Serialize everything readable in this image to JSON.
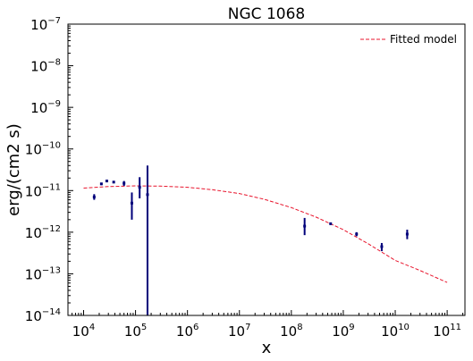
{
  "chart_data": {
    "type": "scatter",
    "title": "NGC 1068",
    "xlabel": "x",
    "ylabel": "erg/(cm2 s)",
    "xscale": "log",
    "yscale": "log",
    "xlim": [
      5000,
      220000000000
    ],
    "ylim": [
      1e-14,
      1e-07
    ],
    "x_ticks": [
      {
        "value": 10000,
        "base": "10",
        "exp": "4"
      },
      {
        "value": 100000,
        "base": "10",
        "exp": "5"
      },
      {
        "value": 1000000,
        "base": "10",
        "exp": "6"
      },
      {
        "value": 10000000,
        "base": "10",
        "exp": "7"
      },
      {
        "value": 100000000,
        "base": "10",
        "exp": "8"
      },
      {
        "value": 1000000000,
        "base": "10",
        "exp": "9"
      },
      {
        "value": 10000000000,
        "base": "10",
        "exp": "10"
      },
      {
        "value": 100000000000,
        "base": "10",
        "exp": "11"
      }
    ],
    "y_ticks": [
      {
        "value": 1e-14,
        "base": "10",
        "exp": "−14"
      },
      {
        "value": 1e-13,
        "base": "10",
        "exp": "−13"
      },
      {
        "value": 1e-12,
        "base": "10",
        "exp": "−12"
      },
      {
        "value": 1e-11,
        "base": "10",
        "exp": "−11"
      },
      {
        "value": 1e-10,
        "base": "10",
        "exp": "−10"
      },
      {
        "value": 1e-09,
        "base": "10",
        "exp": "−9"
      },
      {
        "value": 1e-08,
        "base": "10",
        "exp": "−8"
      },
      {
        "value": 1e-07,
        "base": "10",
        "exp": "−7"
      }
    ],
    "grid": false,
    "legend_position": "top-right",
    "points": [
      {
        "x": 16000,
        "y": 7e-12,
        "ylo": 6e-12,
        "yhi": 8.2e-12
      },
      {
        "x": 22000,
        "y": 1.45e-11,
        "ylo": 1.35e-11,
        "yhi": 1.55e-11
      },
      {
        "x": 28000,
        "y": 1.7e-11,
        "ylo": 1.6e-11,
        "yhi": 1.8e-11
      },
      {
        "x": 38000,
        "y": 1.6e-11,
        "ylo": 1.5e-11,
        "yhi": 1.7e-11
      },
      {
        "x": 60000,
        "y": 1.5e-11,
        "ylo": 1.3e-11,
        "yhi": 1.7e-11
      },
      {
        "x": 85000,
        "y": 5e-12,
        "ylo": 2e-12,
        "yhi": 9e-12
      },
      {
        "x": 120000,
        "y": 1.2e-11,
        "ylo": 6.5e-12,
        "yhi": 2.1e-11
      },
      {
        "x": 170000,
        "y": 8e-12,
        "ylo": 1e-14,
        "yhi": 4e-11
      },
      {
        "x": 180000000,
        "y": 1.4e-12,
        "ylo": 8.5e-13,
        "yhi": 2.2e-12
      },
      {
        "x": 570000000,
        "y": 1.6e-12,
        "ylo": 1.5e-12,
        "yhi": 1.7e-12
      },
      {
        "x": 1800000000,
        "y": 9e-13,
        "ylo": 8e-13,
        "yhi": 1e-12
      },
      {
        "x": 5500000000,
        "y": 4.5e-13,
        "ylo": 3.5e-13,
        "yhi": 5.5e-13
      },
      {
        "x": 17000000000,
        "y": 9e-13,
        "ylo": 6.8e-13,
        "yhi": 1.15e-12
      }
    ],
    "series": [
      {
        "name": "Fitted model",
        "style": "dashed",
        "color": "#e8142c",
        "x": [
          10000,
          30000,
          100000,
          300000,
          1000000,
          3000000,
          10000000,
          30000000,
          100000000,
          300000000,
          1000000000,
          3000000000,
          10000000000,
          30000000000,
          100000000000
        ],
        "y": [
          1.15e-11,
          1.25e-11,
          1.3e-11,
          1.28e-11,
          1.2e-11,
          1.05e-11,
          8.5e-12,
          6.2e-12,
          3.9e-12,
          2.3e-12,
          1.15e-12,
          5.3e-13,
          2.1e-13,
          1.2e-13,
          6.2e-14
        ]
      }
    ],
    "point_color": "#00007a"
  }
}
